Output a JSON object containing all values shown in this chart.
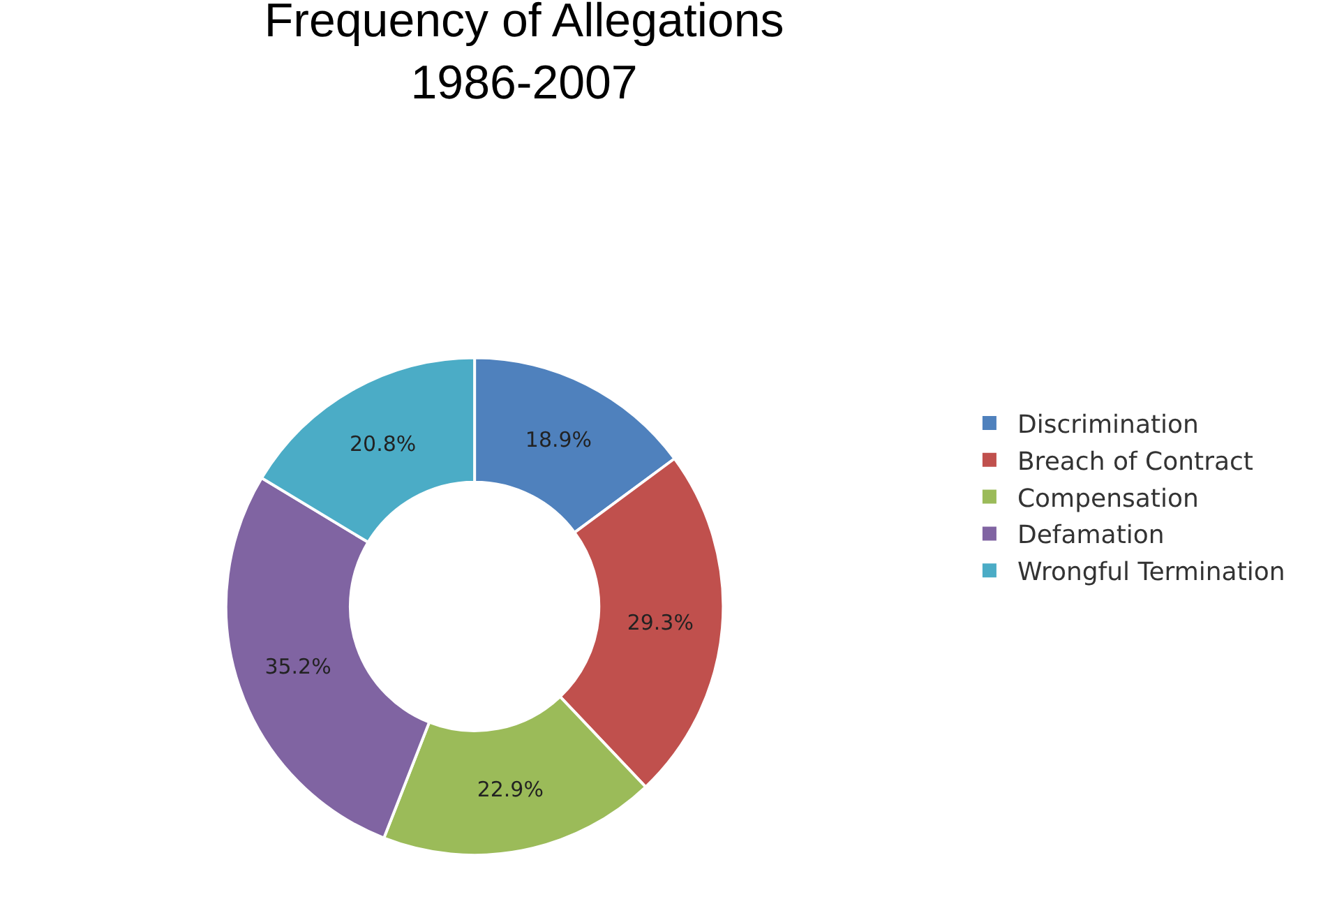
{
  "chart_data": {
    "type": "donut",
    "title": "Frequency of Allegations\n1986-2007",
    "categories": [
      "Discrimination",
      "Breach of Contract",
      "Compensation",
      "Defamation",
      "Wrongful Termination"
    ],
    "values": [
      18.9,
      29.3,
      22.9,
      35.2,
      20.8
    ],
    "value_labels": [
      "18.9%",
      "29.3%",
      "22.9%",
      "35.2%",
      "20.8%"
    ],
    "colors": [
      "#4f81bd",
      "#c0504d",
      "#9bbb59",
      "#8064a2",
      "#4bacc6"
    ],
    "legend": "right"
  }
}
